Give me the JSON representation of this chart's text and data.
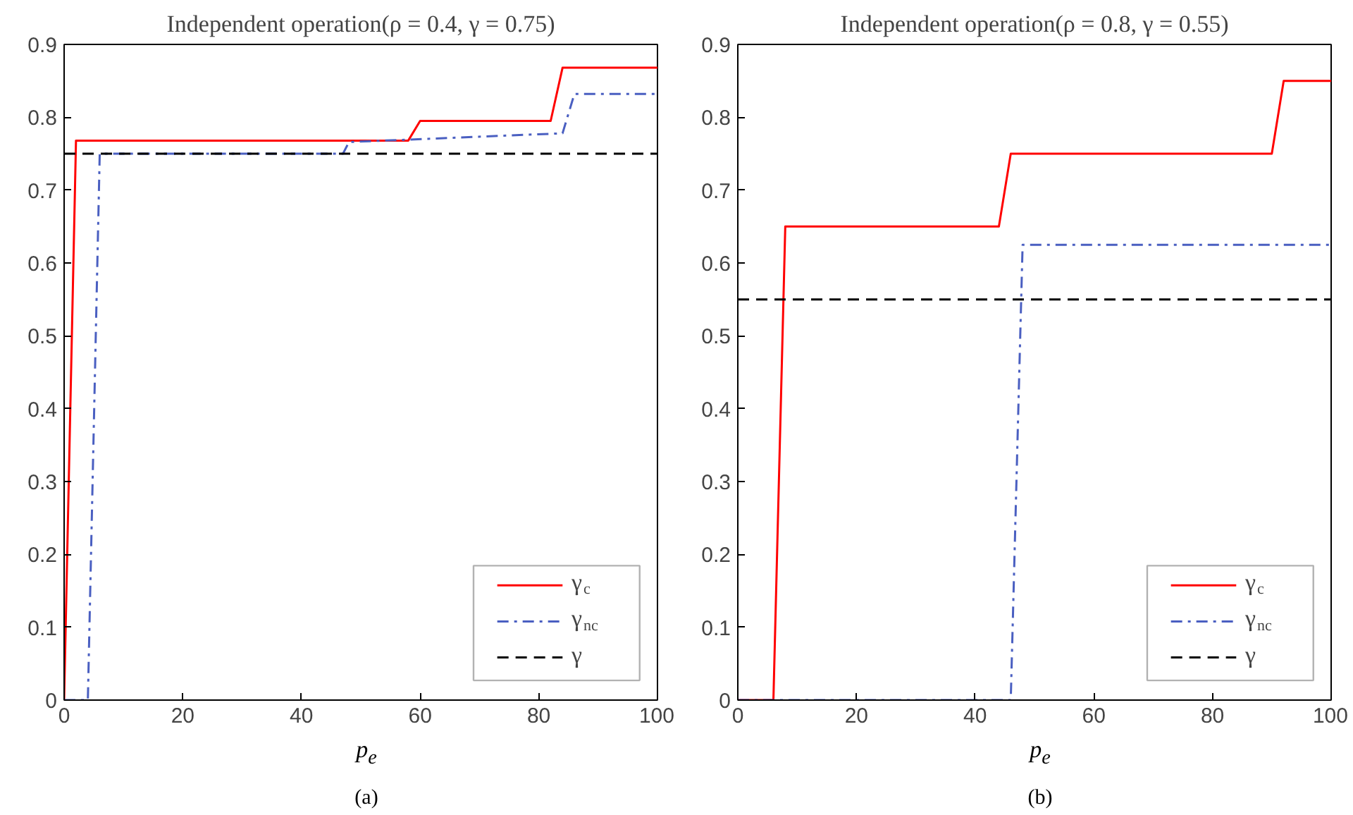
{
  "chart_data": [
    {
      "type": "line",
      "title": "Independent operation(ρ = 0.4, γ = 0.75)",
      "xlabel": "p$_{e}$",
      "annotations": [
        "(a)"
      ],
      "xlim": [
        0,
        100
      ],
      "ylim": [
        0,
        0.9
      ],
      "xticks": [
        0,
        20,
        40,
        60,
        80,
        100
      ],
      "yticks": [
        0,
        0.1,
        0.2,
        0.3,
        0.4,
        0.5,
        0.6,
        0.7,
        0.8,
        0.9
      ],
      "grid": false,
      "legend": "bottom right",
      "series": [
        {
          "name": "γ$_{c}$",
          "color": "#ff0000",
          "line_style": "solid",
          "x": [
            0,
            2,
            58,
            60,
            82,
            84,
            100
          ],
          "values": [
            0,
            0.768,
            0.768,
            0.795,
            0.795,
            0.868,
            0.868
          ]
        },
        {
          "name": "γ$_{nc}$",
          "color": "#4a5fc1",
          "line_style": "dashdot",
          "x": [
            0,
            4,
            6,
            47,
            48,
            84,
            86,
            100
          ],
          "values": [
            0,
            0,
            0.75,
            0.75,
            0.766,
            0.778,
            0.832,
            0.832
          ]
        },
        {
          "name": "γ",
          "color": "#000000",
          "line_style": "dashed",
          "x": [
            0,
            100
          ],
          "values": [
            0.75,
            0.75
          ]
        }
      ]
    },
    {
      "type": "line",
      "title": "Independent operation(ρ = 0.8, γ = 0.55)",
      "xlabel": "p$_{e}$",
      "annotations": [
        "(b)"
      ],
      "xlim": [
        0,
        100
      ],
      "ylim": [
        0,
        0.9
      ],
      "xticks": [
        0,
        20,
        40,
        60,
        80,
        100
      ],
      "yticks": [
        0,
        0.1,
        0.2,
        0.3,
        0.4,
        0.5,
        0.6,
        0.7,
        0.8,
        0.9
      ],
      "grid": false,
      "legend": "bottom right",
      "series": [
        {
          "name": "γ$_{c}$",
          "color": "#ff0000",
          "line_style": "solid",
          "x": [
            0,
            6,
            8,
            44,
            46,
            90,
            92,
            100
          ],
          "values": [
            0,
            0,
            0.65,
            0.65,
            0.75,
            0.75,
            0.85,
            0.85
          ]
        },
        {
          "name": "γ$_{nc}$",
          "color": "#4a5fc1",
          "line_style": "dashdot",
          "x": [
            0,
            46,
            48,
            100
          ],
          "values": [
            0,
            0,
            0.625,
            0.625
          ]
        },
        {
          "name": "γ",
          "color": "#000000",
          "line_style": "dashed",
          "x": [
            0,
            100
          ],
          "values": [
            0.55,
            0.55
          ]
        }
      ]
    }
  ]
}
